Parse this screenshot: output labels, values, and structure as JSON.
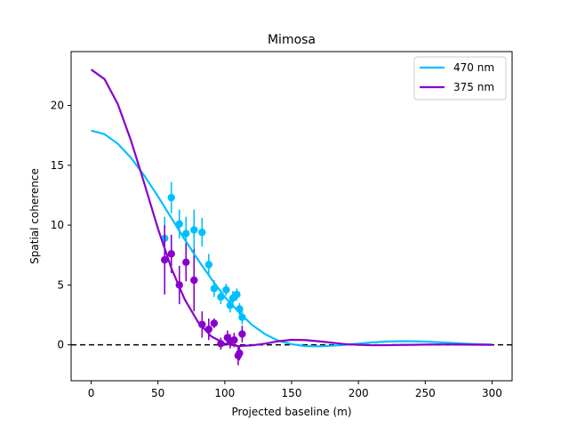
{
  "chart_data": {
    "type": "scatter",
    "title": "Mimosa",
    "xlabel": "Projected baseline (m)",
    "ylabel": "Spatial coherence",
    "xlim": [
      -15,
      315
    ],
    "ylim": [
      -3,
      24.5
    ],
    "x_ticks": [
      0,
      50,
      100,
      150,
      200,
      250,
      300
    ],
    "y_ticks": [
      0,
      5,
      10,
      15,
      20
    ],
    "grid": false,
    "legend_position": "top-right",
    "reference_line": {
      "y": 0,
      "style": "dashed",
      "color": "#000000"
    },
    "series": [
      {
        "name": "470 nm",
        "color": "#00bfff",
        "curve": {
          "x": [
            0,
            10,
            20,
            30,
            40,
            50,
            60,
            70,
            80,
            90,
            100,
            110,
            120,
            130,
            140,
            150,
            160,
            170,
            180,
            190,
            200,
            210,
            220,
            230,
            240,
            250,
            260,
            270,
            280,
            290,
            300
          ],
          "y": [
            17.9,
            17.6,
            16.8,
            15.6,
            14.1,
            12.4,
            10.6,
            8.8,
            7.1,
            5.5,
            4.0,
            2.8,
            1.7,
            0.9,
            0.35,
            0.05,
            -0.1,
            -0.12,
            -0.08,
            0.0,
            0.1,
            0.2,
            0.27,
            0.3,
            0.3,
            0.27,
            0.22,
            0.16,
            0.1,
            0.05,
            0.02
          ]
        },
        "points": [
          {
            "x": 55,
            "y": 8.9,
            "err": 1.8
          },
          {
            "x": 60,
            "y": 12.3,
            "err": 1.3
          },
          {
            "x": 66,
            "y": 10.1,
            "err": 1.2
          },
          {
            "x": 71,
            "y": 9.3,
            "err": 1.4
          },
          {
            "x": 77,
            "y": 9.6,
            "err": 1.7
          },
          {
            "x": 83,
            "y": 9.4,
            "err": 1.2
          },
          {
            "x": 88,
            "y": 6.7,
            "err": 0.9
          },
          {
            "x": 92,
            "y": 4.7,
            "err": 0.7
          },
          {
            "x": 97,
            "y": 4.0,
            "err": 0.6
          },
          {
            "x": 101,
            "y": 4.6,
            "err": 0.5
          },
          {
            "x": 104,
            "y": 3.3,
            "err": 0.6
          },
          {
            "x": 106,
            "y": 3.9,
            "err": 0.6
          },
          {
            "x": 109,
            "y": 4.2,
            "err": 0.5
          },
          {
            "x": 111,
            "y": 3.0,
            "err": 0.5
          },
          {
            "x": 113,
            "y": 2.3,
            "err": 0.6
          }
        ]
      },
      {
        "name": "375 nm",
        "color": "#8800cc",
        "curve": {
          "x": [
            0,
            10,
            20,
            30,
            40,
            50,
            60,
            70,
            80,
            90,
            100,
            110,
            120,
            130,
            140,
            150,
            160,
            170,
            180,
            190,
            200,
            210,
            220,
            230,
            240,
            250,
            260,
            270,
            280,
            290,
            300
          ],
          "y": [
            23.0,
            22.2,
            20.1,
            17.0,
            13.4,
            9.7,
            6.4,
            3.8,
            1.9,
            0.7,
            0.1,
            -0.1,
            -0.05,
            0.1,
            0.3,
            0.42,
            0.4,
            0.3,
            0.18,
            0.06,
            0.0,
            -0.03,
            -0.03,
            -0.01,
            0.0,
            0.02,
            0.03,
            0.03,
            0.02,
            0.01,
            0.0
          ]
        },
        "points": [
          {
            "x": 55,
            "y": 7.1,
            "err": 2.9
          },
          {
            "x": 60,
            "y": 7.6,
            "err": 1.6
          },
          {
            "x": 66,
            "y": 5.0,
            "err": 1.6
          },
          {
            "x": 71,
            "y": 6.9,
            "err": 1.6
          },
          {
            "x": 77,
            "y": 5.4,
            "err": 2.6
          },
          {
            "x": 83,
            "y": 1.7,
            "err": 1.1
          },
          {
            "x": 88,
            "y": 1.3,
            "err": 0.9
          },
          {
            "x": 92,
            "y": 1.8,
            "err": 0.4
          },
          {
            "x": 97,
            "y": 0.1,
            "err": 0.5
          },
          {
            "x": 102,
            "y": 0.6,
            "err": 0.6
          },
          {
            "x": 104,
            "y": 0.3,
            "err": 0.6
          },
          {
            "x": 107,
            "y": 0.4,
            "err": 0.6
          },
          {
            "x": 110,
            "y": -0.9,
            "err": 0.8
          },
          {
            "x": 111,
            "y": -0.7,
            "err": 0.6
          },
          {
            "x": 113,
            "y": 0.9,
            "err": 0.7
          }
        ]
      }
    ]
  }
}
